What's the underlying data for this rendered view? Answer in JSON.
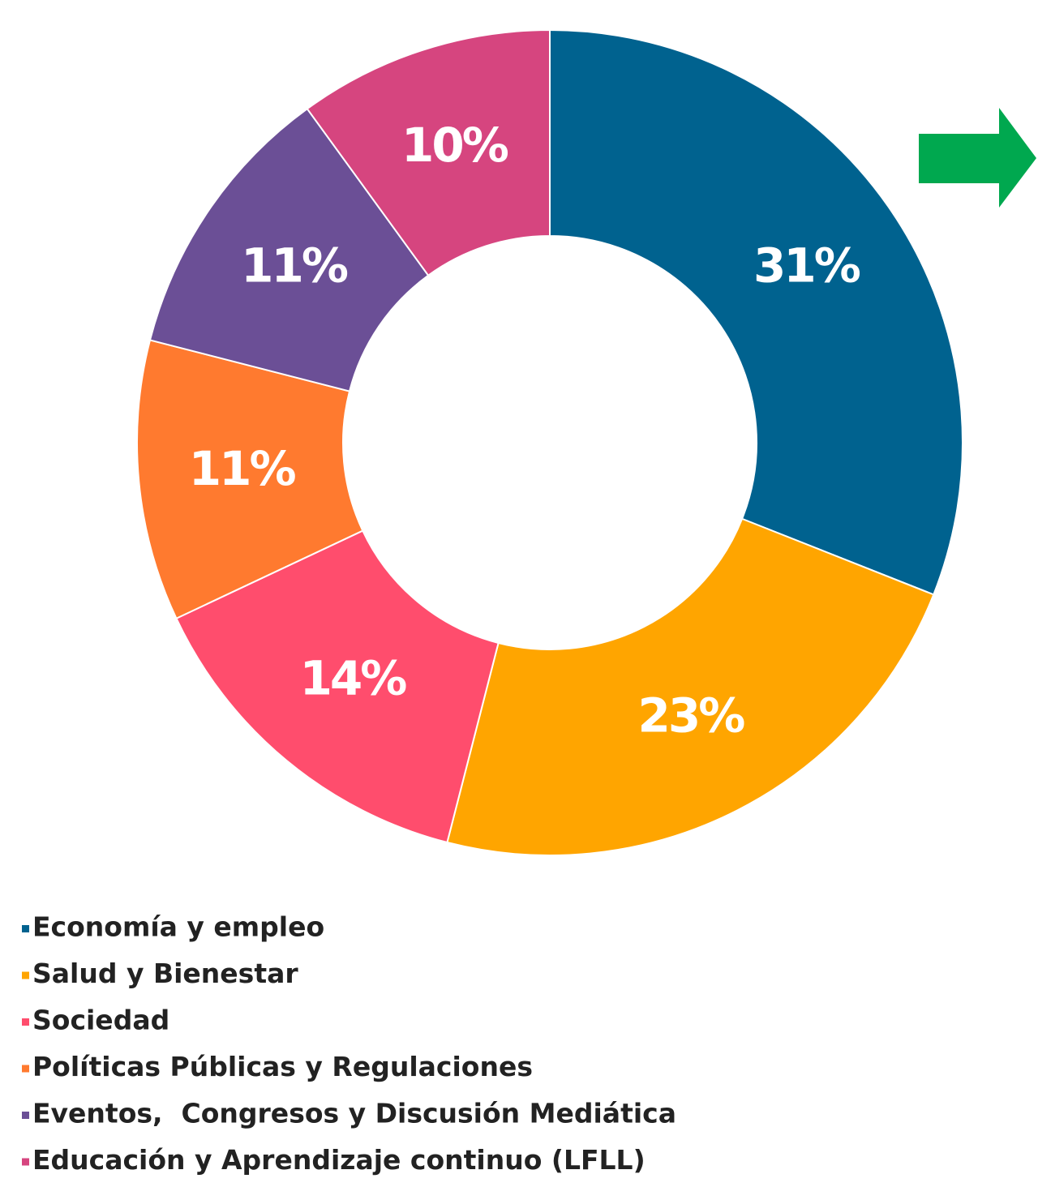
{
  "chart_data": {
    "type": "donut",
    "categories": [
      "Economía y empleo",
      "Salud y Bienestar",
      "Sociedad",
      "Políticas Públicas y Regulaciones",
      "Eventos,  Congresos y Discusión Mediática",
      "Educación y Aprendizaje continuo (LFLL)"
    ],
    "values": [
      31,
      23,
      14,
      11,
      11,
      10
    ],
    "value_labels": [
      "31%",
      "23%",
      "14%",
      "11%",
      "11%",
      "10%"
    ],
    "colors": [
      "#00628f",
      "#ffa500",
      "#ff4d6d",
      "#ff7a2f",
      "#6b4f96",
      "#d6457f"
    ]
  }
}
